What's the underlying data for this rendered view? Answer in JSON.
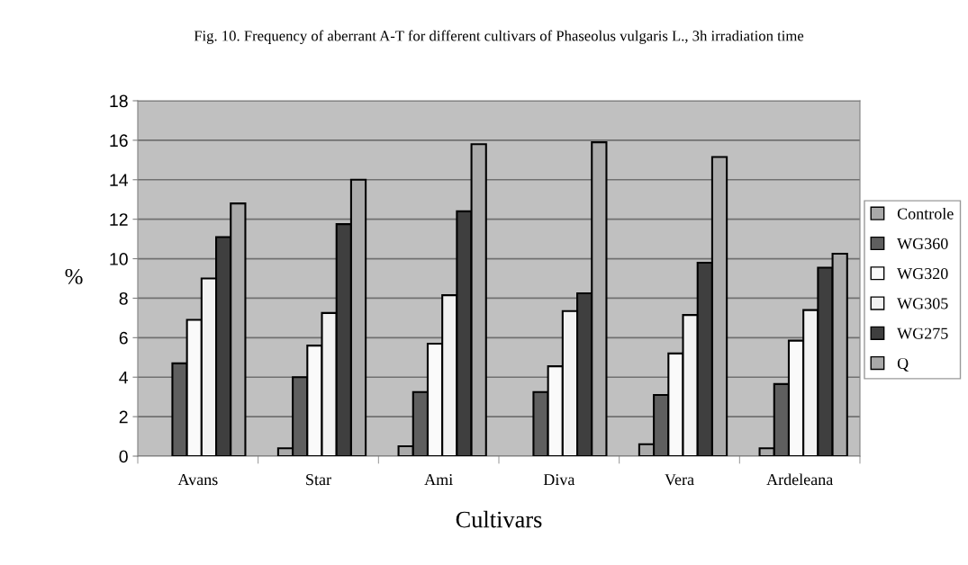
{
  "chart_data": {
    "type": "bar",
    "title": "Fig. 10. Frequency of aberrant A-T for different cultivars of Phaseolus vulgaris L., 3h irradiation time",
    "xlabel": "Cultivars",
    "ylabel": "%",
    "categories": [
      "Avans",
      "Star",
      "Ami",
      "Diva",
      "Vera",
      "Ardeleana"
    ],
    "series": [
      {
        "name": "Controle",
        "color": "#a9a9a9",
        "values": [
          null,
          0.4,
          0.5,
          null,
          0.6,
          0.4
        ]
      },
      {
        "name": "WG360",
        "color": "#5f5f5f",
        "values": [
          4.7,
          4.0,
          3.25,
          3.25,
          3.1,
          3.65
        ]
      },
      {
        "name": "WG320",
        "color": "#fafafa",
        "values": [
          6.9,
          5.6,
          5.7,
          4.55,
          5.2,
          5.85
        ]
      },
      {
        "name": "WG305",
        "color": "#f2f2f2",
        "values": [
          9.0,
          7.25,
          8.15,
          7.35,
          7.15,
          7.4
        ]
      },
      {
        "name": "WG275",
        "color": "#3f3f3f",
        "values": [
          11.1,
          11.75,
          12.4,
          8.25,
          9.8,
          9.55
        ]
      },
      {
        "name": "Q",
        "color": "#aaaaaa",
        "values": [
          12.8,
          14.0,
          15.8,
          15.9,
          15.15,
          10.25
        ]
      }
    ],
    "ylim": [
      0,
      18
    ],
    "yticks": [
      0,
      2,
      4,
      6,
      8,
      10,
      12,
      14,
      16,
      18
    ],
    "grid": "y",
    "legend": "right"
  }
}
